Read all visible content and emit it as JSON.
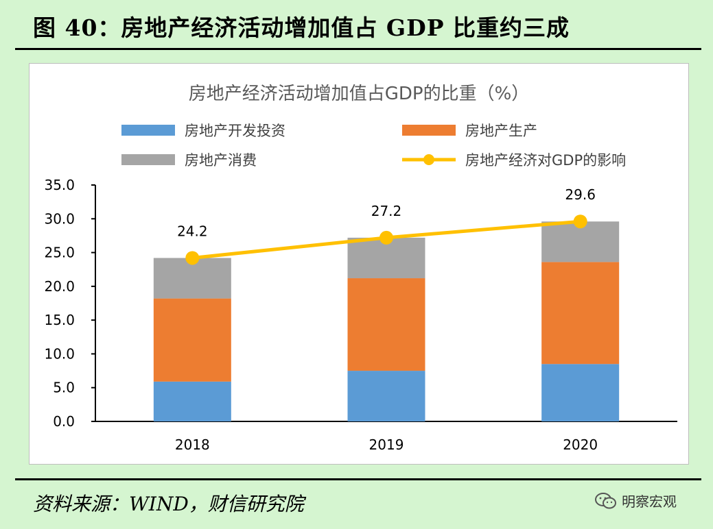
{
  "figure": {
    "title": "图 40：房地产经济活动增加值占 GDP 比重约三成",
    "source": "资料来源：WIND，财信研究院",
    "watermark": "明察宏观",
    "watermark_icon": "wechat-icon"
  },
  "chart_data": {
    "type": "bar",
    "stacked": true,
    "title": "房地产经济活动增加值占GDP的比重（%）",
    "categories": [
      "2018",
      "2019",
      "2020"
    ],
    "ylim": [
      0,
      35
    ],
    "yticks": [
      "0.0",
      "5.0",
      "10.0",
      "15.0",
      "20.0",
      "25.0",
      "30.0",
      "35.0"
    ],
    "grid": false,
    "legend_position": "top",
    "series": [
      {
        "name": "房地产开发投资",
        "type": "bar",
        "color": "#5B9BD5",
        "values": [
          5.9,
          7.5,
          8.5
        ]
      },
      {
        "name": "房地产生产",
        "type": "bar",
        "color": "#ED7D31",
        "values": [
          12.3,
          13.7,
          15.1
        ]
      },
      {
        "name": "房地产消费",
        "type": "bar",
        "color": "#A5A5A5",
        "values": [
          6.0,
          6.0,
          6.0
        ]
      },
      {
        "name": "房地产经济对GDP的影响",
        "type": "line",
        "color": "#FFC000",
        "values": [
          24.2,
          27.2,
          29.6
        ],
        "labels": [
          "24.2",
          "27.2",
          "29.6"
        ]
      }
    ]
  }
}
